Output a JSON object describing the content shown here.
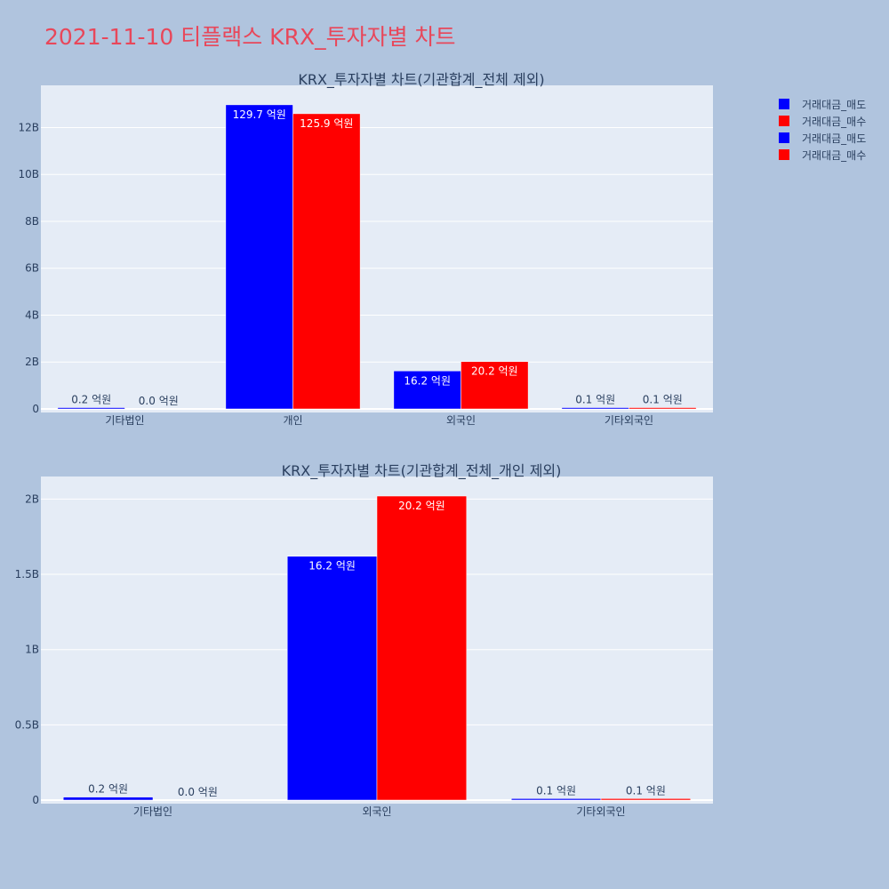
{
  "title": "2021-11-10 티플랙스 KRX_투자자별 차트",
  "legend": [
    {
      "label": "거래대금_매도",
      "color": "#0000ff"
    },
    {
      "label": "거래대금_매수",
      "color": "#ff0000"
    },
    {
      "label": "거래대금_매도",
      "color": "#0000ff"
    },
    {
      "label": "거래대금_매수",
      "color": "#ff0000"
    }
  ],
  "chart_data": [
    {
      "type": "bar",
      "title": "KRX_투자자별 차트(기관합계_전체 제외)",
      "categories": [
        "기타법인",
        "개인",
        "외국인",
        "기타외국인"
      ],
      "series": [
        {
          "name": "거래대금_매도",
          "color": "#0000ff",
          "values": [
            20000000,
            12970000000,
            1620000000,
            10000000
          ],
          "labels": [
            "0.2 억원",
            "129.7 억원",
            "16.2 억원",
            "0.1 억원"
          ]
        },
        {
          "name": "거래대금_매수",
          "color": "#ff0000",
          "values": [
            0,
            12590000000,
            2020000000,
            10000000
          ],
          "labels": [
            "0.0 억원",
            "125.9 억원",
            "20.2 억원",
            "0.1 억원"
          ]
        }
      ],
      "ylim": [
        0,
        13800000000
      ],
      "yticks": [
        0,
        2000000000,
        4000000000,
        6000000000,
        8000000000,
        10000000000,
        12000000000
      ],
      "yticklabels": [
        "0",
        "2B",
        "4B",
        "6B",
        "8B",
        "10B",
        "12B"
      ],
      "grid": true
    },
    {
      "type": "bar",
      "title": "KRX_투자자별 차트(기관합계_전체_개인 제외)",
      "categories": [
        "기타법인",
        "외국인",
        "기타외국인"
      ],
      "series": [
        {
          "name": "거래대금_매도",
          "color": "#0000ff",
          "values": [
            20000000,
            1620000000,
            10000000
          ],
          "labels": [
            "0.2 억원",
            "16.2 억원",
            "0.1 억원"
          ]
        },
        {
          "name": "거래대금_매수",
          "color": "#ff0000",
          "values": [
            0,
            2020000000,
            10000000
          ],
          "labels": [
            "0.0 억원",
            "20.2 억원",
            "0.1 억원"
          ]
        }
      ],
      "ylim": [
        0,
        2150000000
      ],
      "yticks": [
        0,
        500000000,
        1000000000,
        1500000000,
        2000000000
      ],
      "yticklabels": [
        "0",
        "0.5B",
        "1B",
        "1.5B",
        "2B"
      ],
      "grid": true
    }
  ]
}
